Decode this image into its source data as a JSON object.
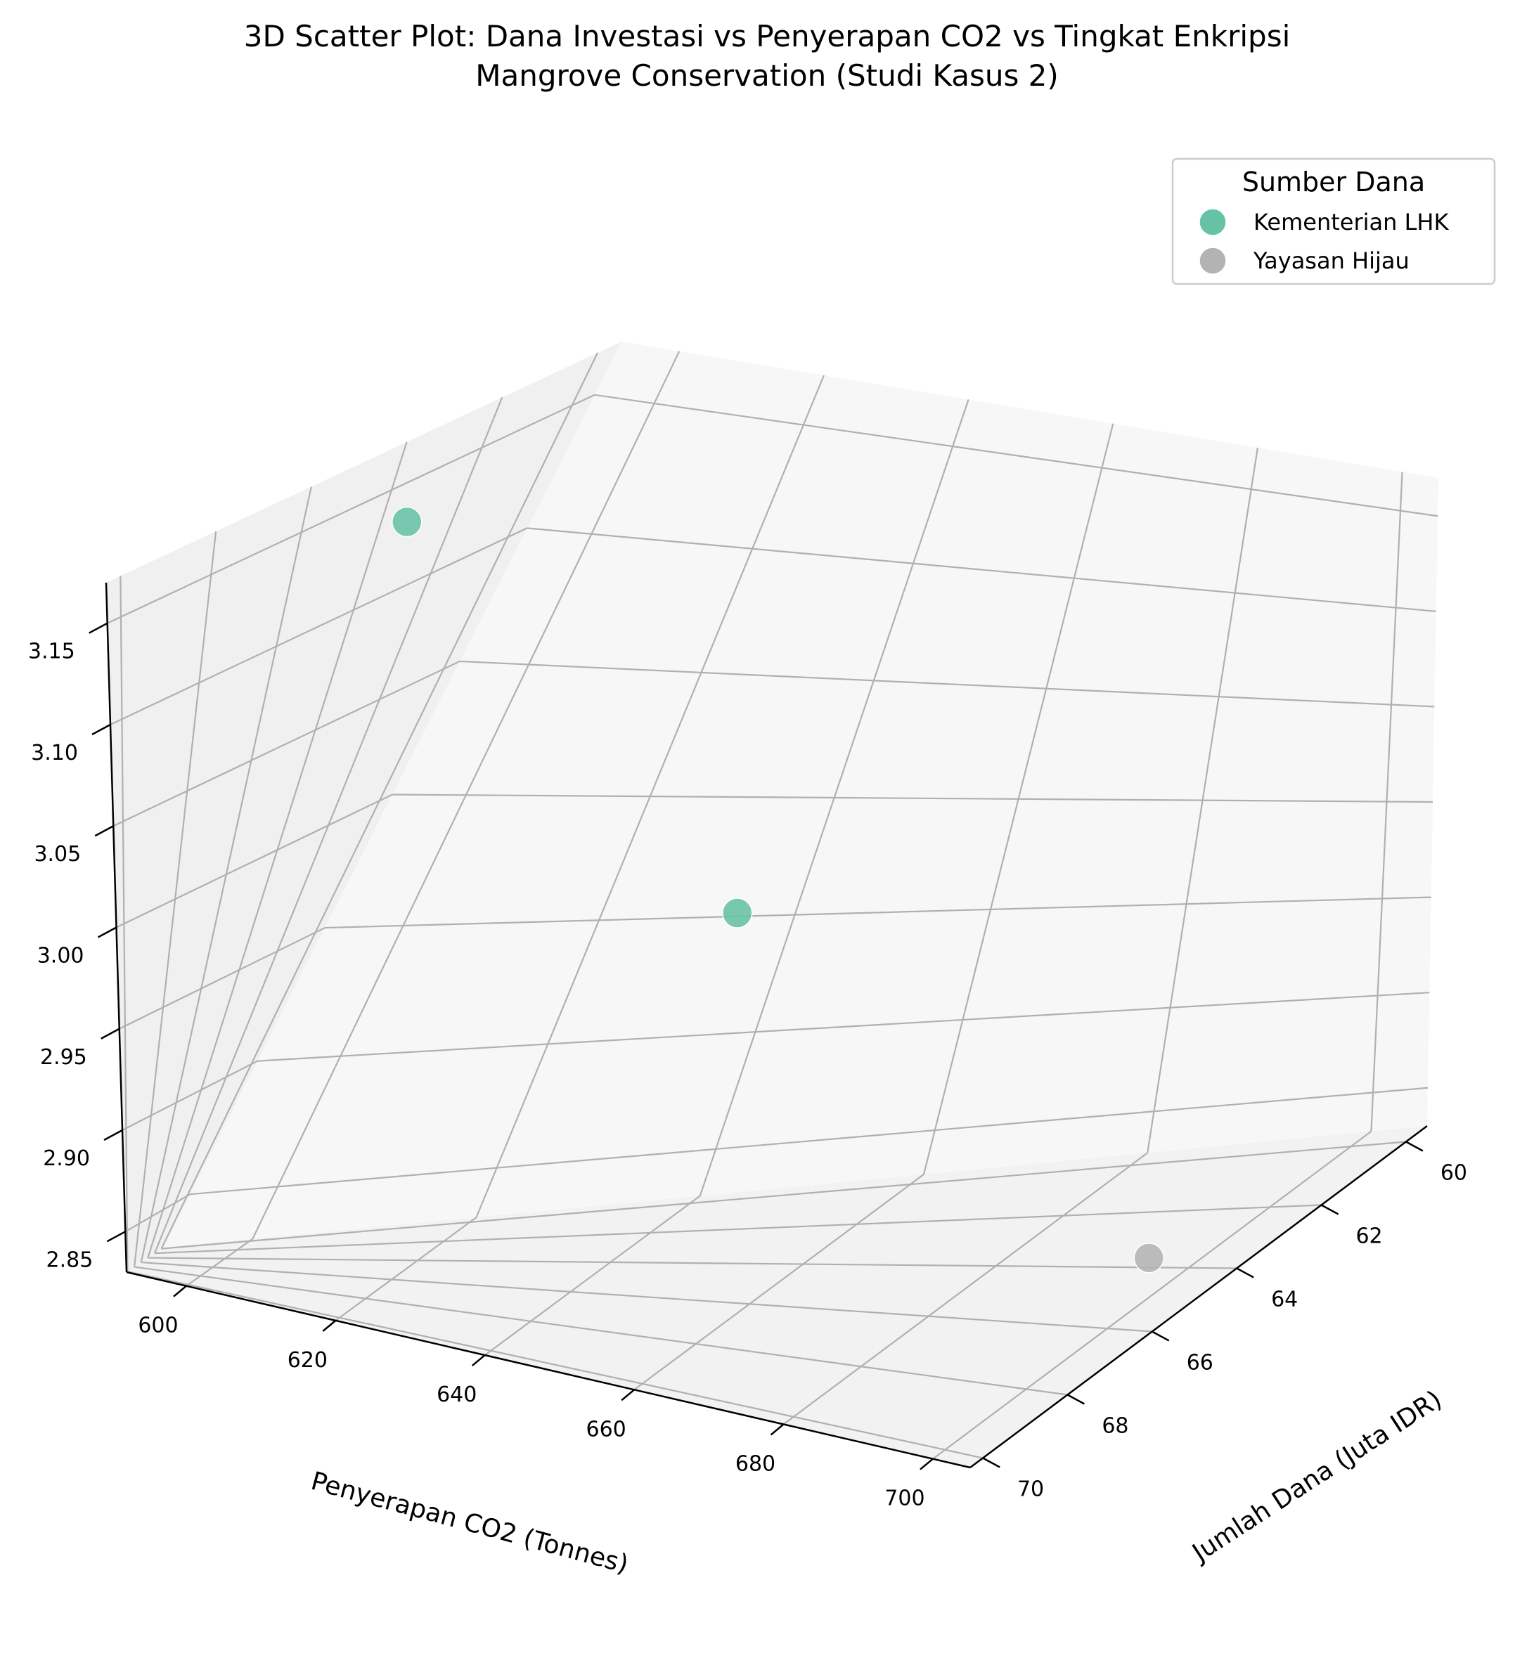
{
  "chart_data": {
    "type": "scatter",
    "title": "3D Scatter Plot: Dana Investasi vs Penyerapan CO2 vs Tingkat Enkripsi",
    "subtitle": "Mangrove Conservation (Studi Kasus 2)",
    "xlabel": "Penyerapan CO2 (Tonnes)",
    "ylabel": "Jumlah Dana (Juta IDR)",
    "zlabel": "",
    "xlim": [
      592,
      705
    ],
    "ylim": [
      59.5,
      70.3
    ],
    "zlim": [
      2.83,
      3.17
    ],
    "x_ticks": [
      600,
      620,
      640,
      660,
      680,
      700
    ],
    "y_ticks": [
      60,
      62,
      64,
      66,
      68,
      70
    ],
    "z_ticks": [
      2.85,
      2.9,
      2.95,
      3.0,
      3.05,
      3.1,
      3.15
    ],
    "grid": true,
    "legend": {
      "title": "Sumber Dana",
      "placement": "top-right",
      "entries": [
        {
          "label": "Kementerian LHK",
          "color": "#66c2a5"
        },
        {
          "label": "Yayasan Hijau",
          "color": "#b3b3b3"
        }
      ]
    },
    "series": [
      {
        "name": "Kementerian LHK",
        "color": "#66c2a5",
        "points": [
          {
            "x": 600,
            "y": 65,
            "z": 3.15
          },
          {
            "x": 650,
            "y": 65,
            "z": 3.0
          }
        ]
      },
      {
        "name": "Yayasan Hijau",
        "color": "#b3b3b3",
        "points": [
          {
            "x": 700,
            "y": 65,
            "z": 2.85
          }
        ]
      }
    ]
  }
}
